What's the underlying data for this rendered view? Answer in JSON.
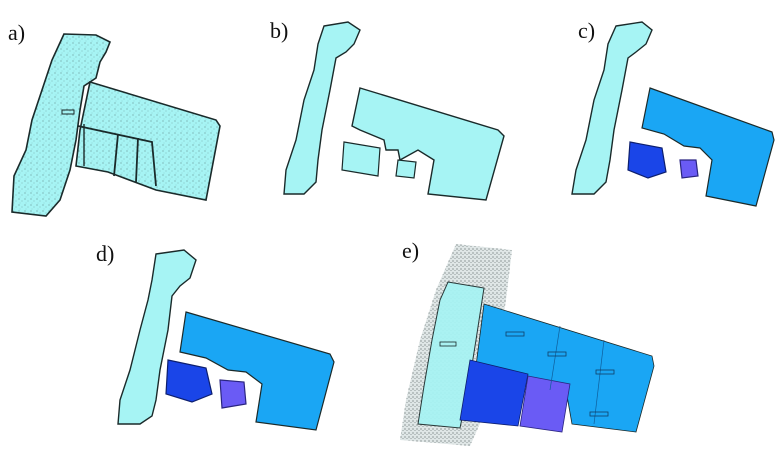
{
  "figure": {
    "panels": [
      {
        "id": "a",
        "label": "a)"
      },
      {
        "id": "b",
        "label": "b)"
      },
      {
        "id": "c",
        "label": "c)"
      },
      {
        "id": "d",
        "label": "d)"
      },
      {
        "id": "e",
        "label": "e)"
      }
    ]
  },
  "colors": {
    "cyan_light": "#A6F4F4",
    "blue_medium": "#1AA6F4",
    "blue_dark": "#1A45E8",
    "violet": "#6A5BF5",
    "outline": "#1a2a2a"
  }
}
